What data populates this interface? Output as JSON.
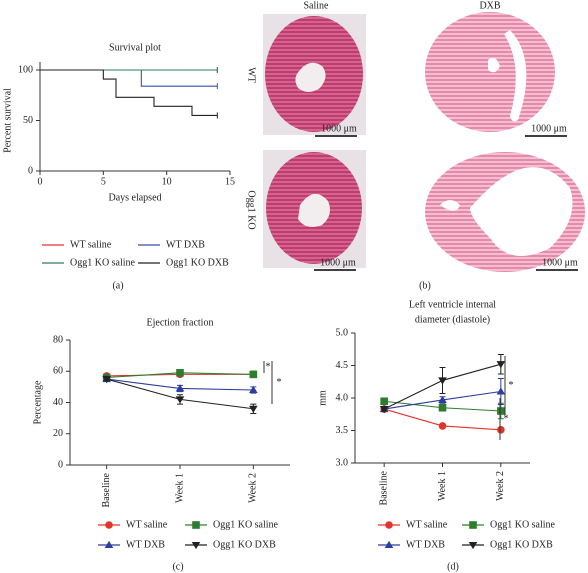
{
  "chart_data": [
    {
      "type": "step",
      "title": "Survival plot",
      "x_label": "Days elapsed",
      "y_label": "Percent survival",
      "xlim": [
        0,
        15
      ],
      "xticks": [
        0,
        5,
        10,
        15
      ],
      "ylim": [
        0,
        100
      ],
      "yticks": [
        0,
        50,
        100
      ],
      "panel_label": "(a)",
      "series": [
        {
          "name": "WT saline",
          "color": "#e0342c",
          "x": [
            0,
            14
          ],
          "values": [
            100,
            100
          ]
        },
        {
          "name": "WT DXB",
          "color": "#3a4fb5",
          "x": [
            0,
            8,
            14
          ],
          "values": [
            100,
            84,
            84
          ]
        },
        {
          "name": "Ogg1 KO saline",
          "color": "#2e7d5b",
          "x": [
            0,
            14
          ],
          "values": [
            100,
            100
          ]
        },
        {
          "name": "Ogg1 KO DXB",
          "color": "#222222",
          "x": [
            0,
            5,
            6,
            9,
            12,
            14
          ],
          "values": [
            100,
            91,
            73,
            64,
            55,
            55
          ]
        }
      ]
    },
    {
      "type": "line",
      "title": "Ejection fraction",
      "y_label": "Percentage",
      "categories": [
        "Baseline",
        "Week 1",
        "Week 2"
      ],
      "ylim": [
        0,
        80
      ],
      "yticks": [
        0,
        20,
        40,
        60,
        80
      ],
      "panel_label": "(c)",
      "annotations": [
        "*",
        "*"
      ],
      "series": [
        {
          "name": "WT saline",
          "color": "#e0342c",
          "marker": "circle",
          "values": [
            57,
            58,
            58
          ],
          "errors": [
            1,
            1,
            1
          ]
        },
        {
          "name": "Ogg1 KO saline",
          "color": "#2e7d2e",
          "marker": "square",
          "values": [
            56,
            59,
            58
          ],
          "errors": [
            1,
            2,
            2
          ]
        },
        {
          "name": "WT DXB",
          "color": "#2c3e9e",
          "marker": "triangle",
          "values": [
            55,
            49,
            48
          ],
          "errors": [
            1,
            2,
            2
          ]
        },
        {
          "name": "Ogg1 KO DXB",
          "color": "#222222",
          "marker": "triangle-down",
          "values": [
            55,
            42,
            36
          ],
          "errors": [
            1,
            3,
            3
          ]
        }
      ]
    },
    {
      "type": "line",
      "title": [
        "Left ventricle internal",
        "diameter (diastole)"
      ],
      "y_label": "mm",
      "categories": [
        "Baseline",
        "Week 1",
        "Week 2"
      ],
      "ylim": [
        3.0,
        5.0
      ],
      "yticks": [
        {
          "value": 3.0,
          "label": "3.0"
        },
        3.5,
        {
          "value": 4.0,
          "label": "4.0"
        },
        4.5,
        {
          "value": 5.0,
          "label": "5.0"
        }
      ],
      "panel_label": "(d)",
      "annotations": [
        "*",
        "*"
      ],
      "series": [
        {
          "name": "WT saline",
          "color": "#e0342c",
          "marker": "circle",
          "values": [
            3.83,
            3.57,
            3.51
          ],
          "errors": [
            0.03,
            0.03,
            0.03
          ]
        },
        {
          "name": "Ogg1 KO saline",
          "color": "#2e7d2e",
          "marker": "square",
          "values": [
            3.95,
            3.85,
            3.8
          ],
          "errors": [
            0.03,
            0.05,
            0.12
          ]
        },
        {
          "name": "WT DXB",
          "color": "#2c3e9e",
          "marker": "triangle",
          "values": [
            3.83,
            3.97,
            4.1
          ],
          "errors": [
            0.03,
            0.05,
            0.2
          ]
        },
        {
          "name": "Ogg1 KO DXB",
          "color": "#222222",
          "marker": "triangle-down",
          "values": [
            3.83,
            4.27,
            4.52
          ],
          "errors": [
            0.03,
            0.2,
            0.15
          ]
        }
      ]
    }
  ],
  "panel_b": {
    "columns": [
      "Saline",
      "DXB"
    ],
    "rows": [
      "WT",
      "Ogg1 KO"
    ],
    "scale_labels": [
      "1000 μm",
      "1000 μm",
      "1000 μm",
      "1000 μm"
    ],
    "panel_label": "(b)"
  }
}
